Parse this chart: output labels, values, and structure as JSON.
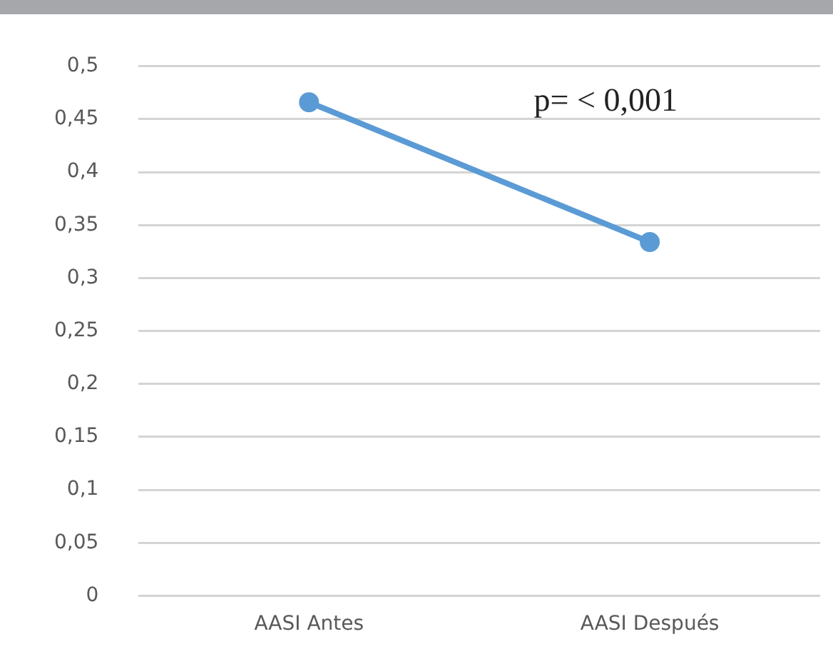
{
  "chart_data": {
    "type": "line",
    "categories": [
      "AASI Antes",
      "AASI Después"
    ],
    "series": [
      {
        "color": "#5b9bd5",
        "values": [
          0.466,
          0.334
        ]
      }
    ],
    "ylim": [
      0,
      0.5
    ],
    "yticks": [
      {
        "value": 0,
        "label": "0"
      },
      {
        "value": 0.05,
        "label": "0,05"
      },
      {
        "value": 0.1,
        "label": "0,1"
      },
      {
        "value": 0.15,
        "label": "0,15"
      },
      {
        "value": 0.2,
        "label": "0,2"
      },
      {
        "value": 0.25,
        "label": "0,25"
      },
      {
        "value": 0.3,
        "label": "0,3"
      },
      {
        "value": 0.35,
        "label": "0,35"
      },
      {
        "value": 0.4,
        "label": "0,4"
      },
      {
        "value": 0.45,
        "label": "0,45"
      },
      {
        "value": 0.5,
        "label": "0,5"
      }
    ],
    "grid": "y",
    "legend": false,
    "marker": "circle",
    "line_style": "solid",
    "annotations": [
      "p= < 0,001"
    ]
  }
}
